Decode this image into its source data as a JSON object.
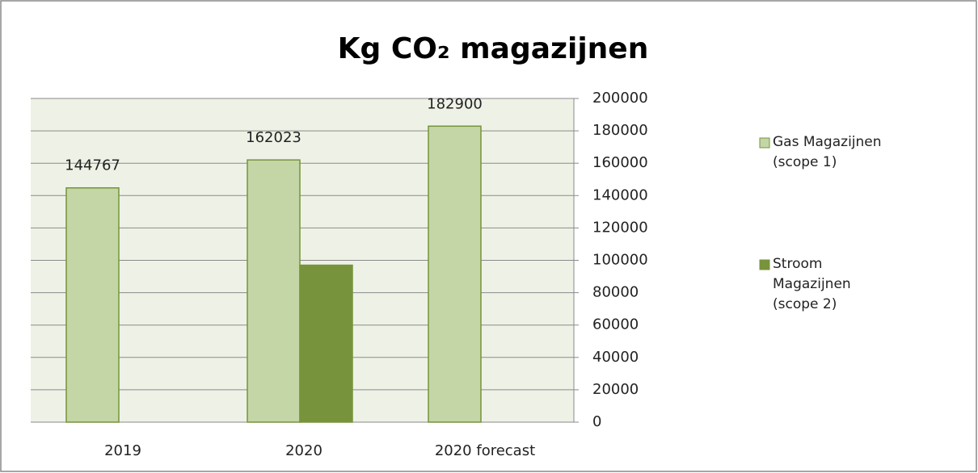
{
  "chart_data": {
    "type": "bar",
    "title": "Kg CO₂ magazijnen",
    "categories": [
      "2019",
      "2020",
      "2020 forecast"
    ],
    "series": [
      {
        "name": "Gas Magazijnen (scope 1)",
        "color": "#c4d6a6",
        "values": [
          144767,
          162023,
          182900
        ],
        "show_labels": true
      },
      {
        "name": "Stroom Magazijnen (scope 2)",
        "color": "#77933c",
        "values": [
          null,
          97000,
          null
        ],
        "show_labels": false
      }
    ],
    "ylim": [
      0,
      200000
    ],
    "yticks": [
      0,
      20000,
      40000,
      60000,
      80000,
      100000,
      120000,
      140000,
      160000,
      180000,
      200000
    ],
    "grid": true,
    "y_axis_side": "right",
    "legend": "right"
  }
}
